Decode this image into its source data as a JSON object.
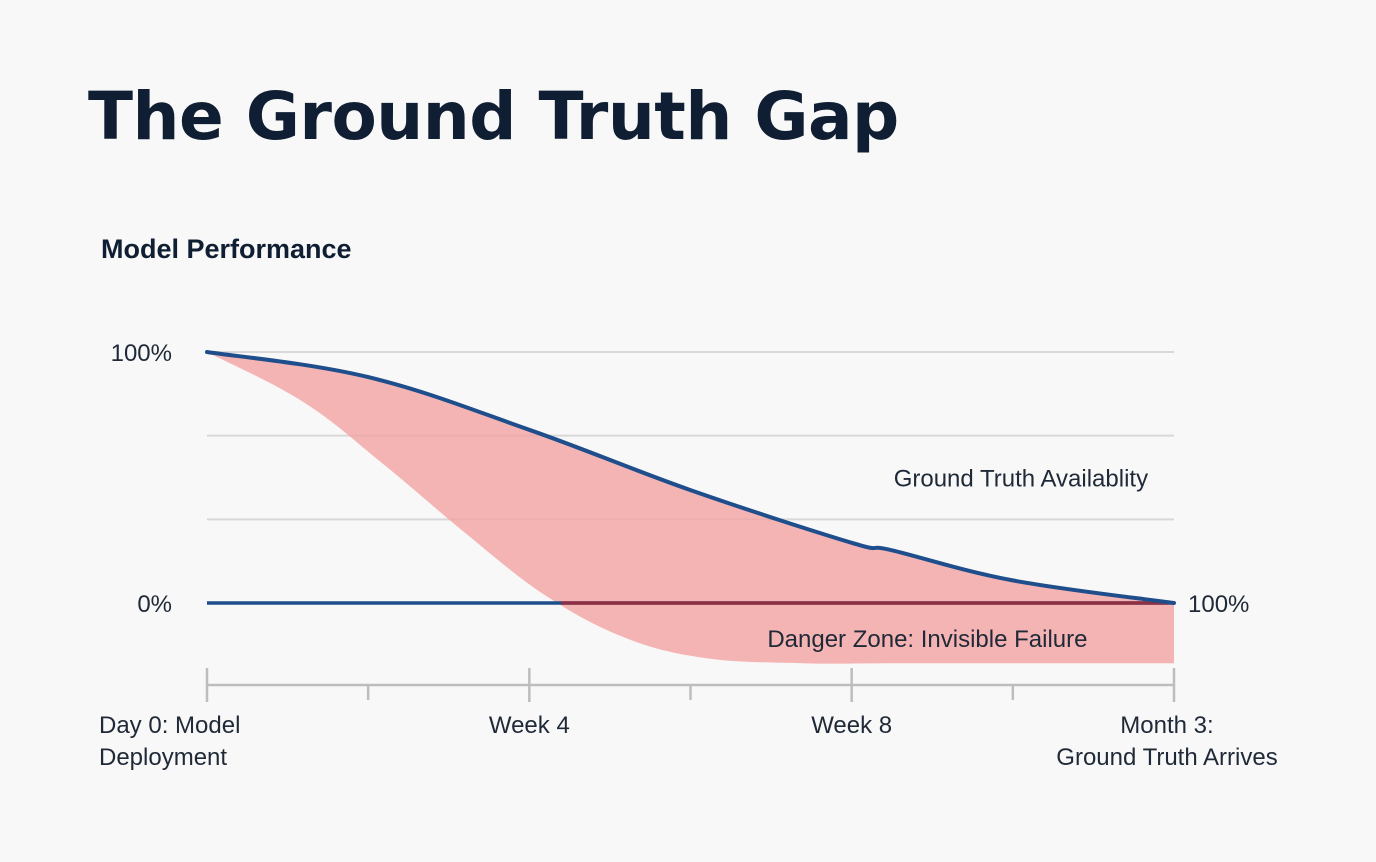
{
  "title": "The Ground Truth Gap",
  "chart_data": {
    "type": "area",
    "title": "The Ground Truth Gap",
    "subtitle": "Model Performance",
    "ylabel": "Model Performance",
    "x": [
      0,
      1,
      2,
      3,
      4,
      5,
      6
    ],
    "x_range": [
      0,
      6
    ],
    "y_range": [
      -0.24,
      1.0
    ],
    "y_ticks": [
      {
        "value": 1.0,
        "label": "100%"
      },
      {
        "value": 0.0,
        "label": "0%"
      }
    ],
    "y_right_label": {
      "value": 0.0,
      "label": "100%"
    },
    "gridlines": [
      1.0,
      0.667,
      0.333
    ],
    "x_ticks": [
      0,
      1,
      2,
      3,
      4,
      5,
      6
    ],
    "x_labels": [
      {
        "x": 0,
        "lines": [
          "Day 0: Model",
          "Deployment"
        ]
      },
      {
        "x": 2,
        "lines": [
          "Week 4"
        ]
      },
      {
        "x": 4,
        "lines": [
          "Week 8"
        ]
      },
      {
        "x": 6,
        "lines": [
          "Month 3:",
          "Ground Truth Arrives"
        ]
      }
    ],
    "series": [
      {
        "name": "Ground Truth Availablity",
        "type": "line",
        "color": "#1f4e8c",
        "x": [
          0,
          1,
          2,
          3,
          4,
          4.25,
          5,
          6
        ],
        "values": [
          1.0,
          0.9,
          0.69,
          0.45,
          0.24,
          0.21,
          0.09,
          0.0
        ]
      },
      {
        "name": "Danger Zone: Invisible Failure",
        "type": "area-lower-bound",
        "color": "#f4a3a3",
        "x": [
          0,
          0.6,
          1.1,
          1.6,
          2.1,
          2.6,
          3.1,
          3.7,
          4.3,
          5.0,
          6.0
        ],
        "values": [
          1.0,
          0.8,
          0.55,
          0.28,
          0.03,
          -0.14,
          -0.22,
          -0.24,
          -0.24,
          -0.24,
          -0.24
        ]
      }
    ],
    "annotations": [
      {
        "text": "Ground Truth Availablity",
        "x": 5.05,
        "y": 0.5
      },
      {
        "text": "Danger Zone: Invisible Failure",
        "x": 4.47,
        "y": -0.14
      }
    ],
    "colors": {
      "line": "#1f4e8c",
      "zero_line": "#1f4e8c",
      "zero_line_overlap": "#a52a36",
      "fill": "#f4a3a3",
      "grid": "#d8d8d8",
      "axis": "#bdbdbd"
    }
  }
}
